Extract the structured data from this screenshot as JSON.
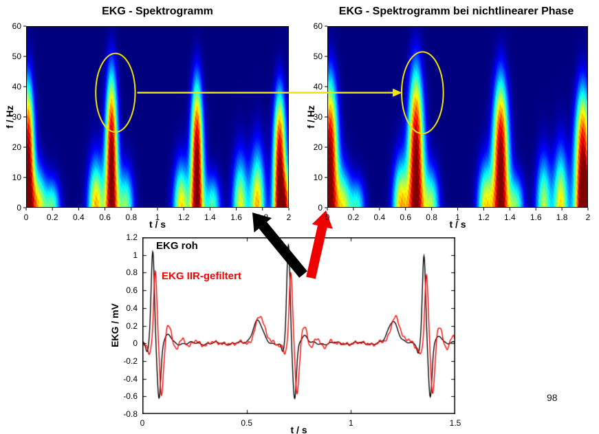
{
  "slide": {
    "page_number": "98"
  },
  "colors": {
    "background": "#ffffff",
    "spectrogram_background": "#000080",
    "annotation_yellow": "#f0e400",
    "arrow_black": "#000000",
    "arrow_red": "#ee0000"
  },
  "chart_data": [
    {
      "type": "heatmap",
      "name": "left-spectrogram",
      "title": "EKG - Spektrogramm",
      "xlabel": "t / s",
      "ylabel": "f / Hz",
      "xlim": [
        0,
        2
      ],
      "ylim": [
        0,
        60
      ],
      "xticks": [
        0,
        0.2,
        0.4,
        0.6,
        0.8,
        1,
        1.2,
        1.4,
        1.6,
        1.8,
        2
      ],
      "xtick_labels": [
        "0",
        "0.2",
        "0.4",
        "0.6",
        "0.8",
        "1",
        "1.2",
        "1.4",
        "1.6",
        "1.8",
        "2"
      ],
      "yticks": [
        0,
        10,
        20,
        30,
        40,
        50,
        60
      ],
      "ytick_labels": [
        "0",
        "10",
        "20",
        "30",
        "40",
        "50",
        "60"
      ],
      "colormap": "jet",
      "sigma_t": 0.034,
      "beats": [
        {
          "t": 0.015,
          "f_top": 40,
          "amp": 1.05
        },
        {
          "t": 0.65,
          "f_top": 43,
          "amp": 1.05
        },
        {
          "t": 1.3,
          "f_top": 40,
          "amp": 1.05
        },
        {
          "t": 1.93,
          "f_top": 37,
          "amp": 1.0
        }
      ],
      "sidelobes": [
        {
          "t": 0.1,
          "f_top": 12,
          "amp": 0.55
        },
        {
          "t": 0.2,
          "f_top": 9,
          "amp": 0.45
        },
        {
          "t": 0.53,
          "f_top": 15,
          "amp": 0.7
        },
        {
          "t": 0.76,
          "f_top": 12,
          "amp": 0.5
        },
        {
          "t": 1.18,
          "f_top": 14,
          "amp": 0.65
        },
        {
          "t": 1.42,
          "f_top": 10,
          "amp": 0.45
        },
        {
          "t": 1.63,
          "f_top": 16,
          "amp": 0.6
        },
        {
          "t": 1.76,
          "f_top": 18,
          "amp": 0.7
        },
        {
          "t": 1.99,
          "f_top": 12,
          "amp": 0.5
        }
      ],
      "annotation_ellipse": {
        "t": 0.68,
        "f": 38,
        "rt": 0.15,
        "rf": 13
      }
    },
    {
      "type": "heatmap",
      "name": "right-spectrogram",
      "title": "EKG - Spektrogramm bei nichtlinearer Phase",
      "xlabel": "t / s",
      "ylabel": "f / Hz",
      "xlim": [
        0,
        2
      ],
      "ylim": [
        0,
        60
      ],
      "xticks": [
        0,
        0.2,
        0.4,
        0.6,
        0.8,
        1,
        1.2,
        1.4,
        1.6,
        1.8,
        2
      ],
      "xtick_labels": [
        "0",
        "0.2",
        "0.4",
        "0.6",
        "0.8",
        "1",
        "1.2",
        "1.4",
        "1.6",
        "1.8",
        "2"
      ],
      "yticks": [
        0,
        10,
        20,
        30,
        40,
        50,
        60
      ],
      "ytick_labels": [
        "0",
        "10",
        "20",
        "30",
        "40",
        "50",
        "60"
      ],
      "colormap": "jet",
      "sigma_t": 0.044,
      "beats": [
        {
          "t": 0.02,
          "f_top": 41,
          "amp": 1.05
        },
        {
          "t": 0.68,
          "f_top": 44,
          "amp": 1.05
        },
        {
          "t": 1.33,
          "f_top": 41,
          "amp": 1.05
        },
        {
          "t": 1.96,
          "f_top": 38,
          "amp": 1.0
        }
      ],
      "sidelobes": [
        {
          "t": 0.13,
          "f_top": 12,
          "amp": 0.5
        },
        {
          "t": 0.23,
          "f_top": 9,
          "amp": 0.4
        },
        {
          "t": 0.56,
          "f_top": 15,
          "amp": 0.65
        },
        {
          "t": 0.8,
          "f_top": 12,
          "amp": 0.5
        },
        {
          "t": 1.21,
          "f_top": 14,
          "amp": 0.6
        },
        {
          "t": 1.45,
          "f_top": 10,
          "amp": 0.45
        },
        {
          "t": 1.66,
          "f_top": 16,
          "amp": 0.55
        },
        {
          "t": 1.79,
          "f_top": 18,
          "amp": 0.65
        },
        {
          "t": 2.0,
          "f_top": 12,
          "amp": 0.5
        }
      ],
      "annotation_ellipse": {
        "t": 0.73,
        "f": 38,
        "rt": 0.16,
        "rf": 13.5
      }
    },
    {
      "type": "line",
      "name": "ekg-time-series",
      "xlabel": "t / s",
      "ylabel": "EKG / mV",
      "xlim": [
        0,
        1.5
      ],
      "ylim": [
        -0.8,
        1.2
      ],
      "xticks": [
        0,
        0.5,
        1,
        1.5
      ],
      "xtick_labels": [
        "0",
        "0.5",
        "1",
        "1.5"
      ],
      "yticks": [
        1.2,
        1,
        0.8,
        0.6,
        0.4,
        0.2,
        0,
        -0.2,
        -0.4,
        -0.6,
        -0.8
      ],
      "ytick_labels": [
        "1.2",
        "1",
        "0.8",
        "0.6",
        "0.4",
        "0.2",
        "0",
        "-0.2",
        "-0.4",
        "-0.6",
        "-0.8"
      ],
      "legend": [
        {
          "label": "EKG roh",
          "color": "#000000"
        },
        {
          "label": "EKG IIR-gefiltert",
          "color": "#ff0000"
        }
      ],
      "beat_times": [
        0.05,
        0.7,
        1.35
      ],
      "series": [
        {
          "name": "EKG roh",
          "color": "#000000",
          "r_amp": [
            1.05,
            1.1,
            1.0
          ],
          "q_amp": -0.1,
          "s_amp": -0.62,
          "t_amp": 0.26,
          "delay": 0,
          "ringing": false
        },
        {
          "name": "EKG IIR-gefiltert",
          "color": "#ff0000",
          "r_amp": [
            0.83,
            0.8,
            0.78
          ],
          "q_amp": -0.12,
          "s_amp": -0.58,
          "t_amp": 0.3,
          "delay": 0.012,
          "ringing": true
        }
      ]
    }
  ],
  "annotations": {
    "ellipse_color": "#f0e400",
    "transfer_arrow_color": "#f0e400",
    "source_arrow_black_color": "#000000",
    "source_arrow_red_color": "#ee0000"
  }
}
